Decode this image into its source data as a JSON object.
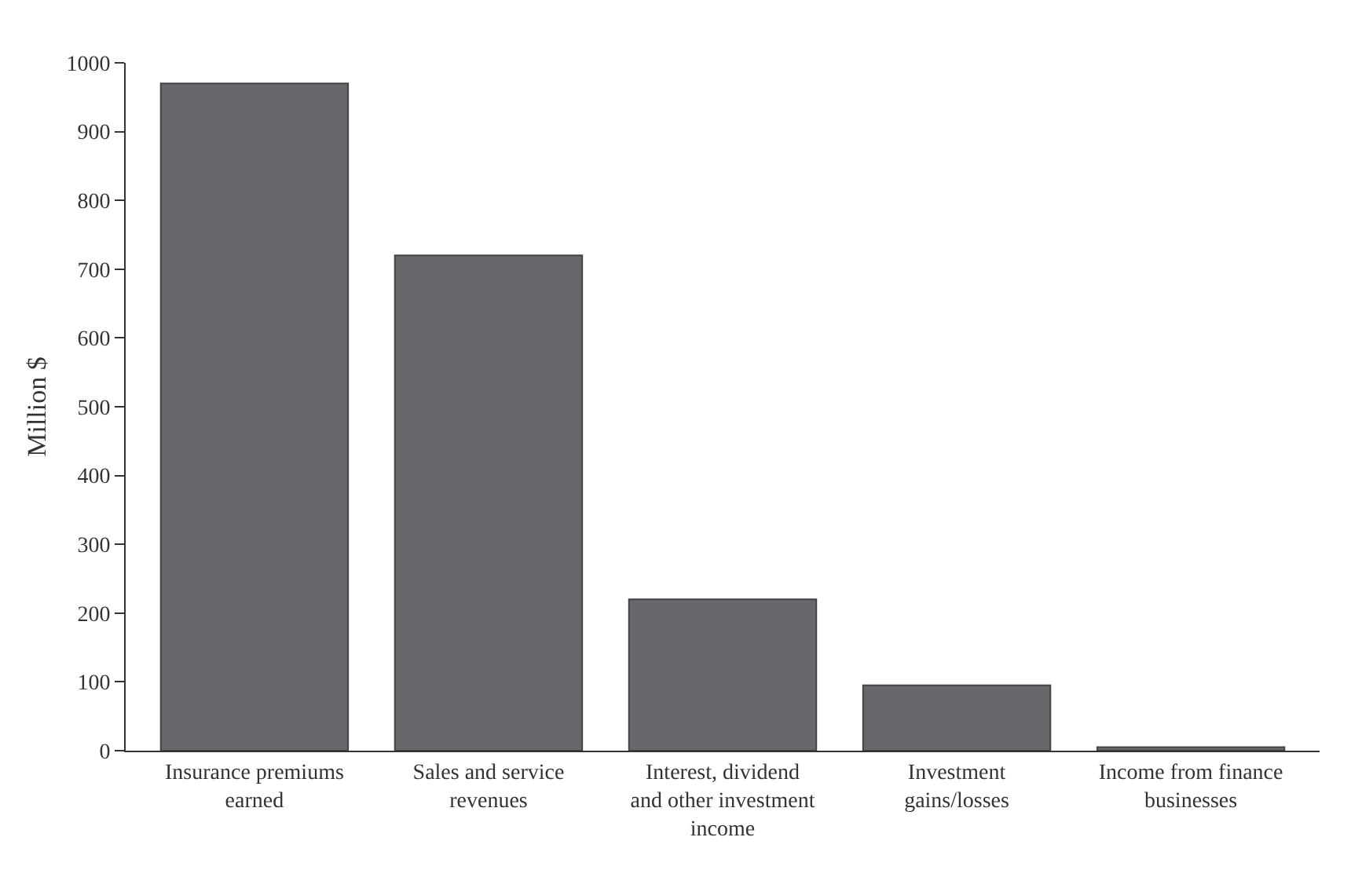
{
  "chart_data": {
    "type": "bar",
    "ylabel": "Million $",
    "categories": [
      "Insurance premiums earned",
      "Sales and service revenues",
      "Interest, dividend and other investment income",
      "Investment gains/losses",
      "Income from finance businesses"
    ],
    "values": [
      970,
      720,
      220,
      95,
      5
    ],
    "color": "#67676c",
    "ylim": [
      0,
      1000
    ],
    "yticks": [
      0,
      100,
      200,
      300,
      400,
      500,
      600,
      700,
      800,
      900,
      1000
    ]
  }
}
